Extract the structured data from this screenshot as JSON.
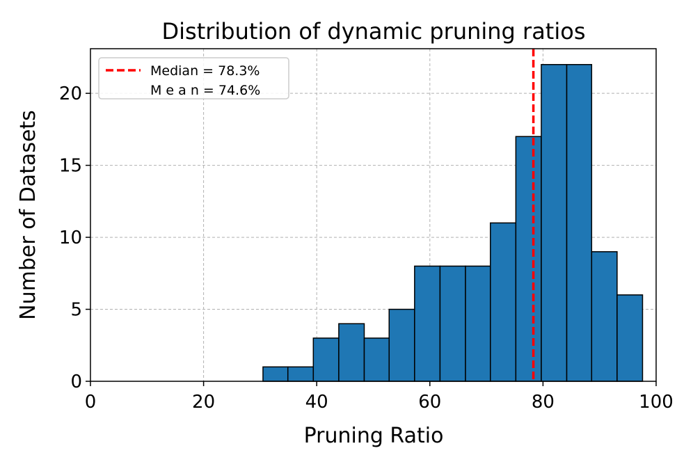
{
  "chart_data": {
    "type": "bar",
    "title": "Distribution of dynamic pruning ratios",
    "xlabel": "Pruning Ratio",
    "ylabel": "Number of Datasets",
    "xlim": [
      0,
      100
    ],
    "ylim": [
      0,
      23.1
    ],
    "xticks": [
      0,
      20,
      40,
      60,
      80,
      100
    ],
    "yticks": [
      0,
      5,
      10,
      15,
      20
    ],
    "grid": true,
    "legend_position": "top-left",
    "bar_color": "#1f77b4",
    "bar_edge_color": "#000000",
    "bins": [
      {
        "x0": 30.5,
        "x1": 34.9,
        "count": 1
      },
      {
        "x0": 34.9,
        "x1": 39.4,
        "count": 1
      },
      {
        "x0": 39.4,
        "x1": 43.9,
        "count": 3
      },
      {
        "x0": 43.9,
        "x1": 48.4,
        "count": 4
      },
      {
        "x0": 48.4,
        "x1": 52.8,
        "count": 3
      },
      {
        "x0": 52.8,
        "x1": 57.3,
        "count": 5
      },
      {
        "x0": 57.3,
        "x1": 61.8,
        "count": 8
      },
      {
        "x0": 61.8,
        "x1": 66.3,
        "count": 8
      },
      {
        "x0": 66.3,
        "x1": 70.7,
        "count": 8
      },
      {
        "x0": 70.7,
        "x1": 75.2,
        "count": 11
      },
      {
        "x0": 75.2,
        "x1": 79.7,
        "count": 17
      },
      {
        "x0": 79.7,
        "x1": 84.2,
        "count": 22
      },
      {
        "x0": 84.2,
        "x1": 88.6,
        "count": 22
      },
      {
        "x0": 88.6,
        "x1": 93.1,
        "count": 9
      },
      {
        "x0": 93.1,
        "x1": 97.6,
        "count": 6
      }
    ],
    "median_line": {
      "x": 78.3,
      "color": "#ff0000",
      "label": "Median = 78.3%"
    },
    "mean_entry": {
      "label": "M e a n  = 74.6%"
    }
  }
}
